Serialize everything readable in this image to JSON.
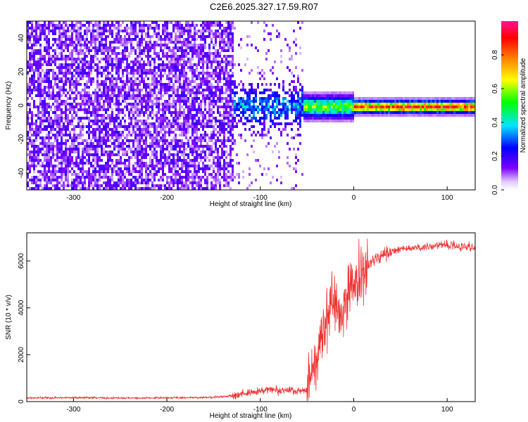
{
  "title": "C2E6.2025.327.17.59.R07",
  "chart_data": [
    {
      "type": "heatmap",
      "name": "spectrogram",
      "xlabel": "Height of straight line (km)",
      "ylabel": "Frequency (Hz)",
      "xlim": [
        -350,
        130
      ],
      "ylim": [
        -50,
        50
      ],
      "xticks": [
        -300,
        -200,
        -100,
        0,
        100
      ],
      "yticks": [
        -40,
        -20,
        0,
        20,
        40
      ],
      "colorbar": {
        "label": "Normalized spectral amplitude",
        "range": [
          0,
          1
        ],
        "ticks": [
          0.0,
          0.2,
          0.4,
          0.6,
          0.8
        ],
        "colors": [
          "#ffffff",
          "#7a00ff",
          "#0000ff",
          "#00e5ff",
          "#00ff00",
          "#ffff00",
          "#ff7f00",
          "#ff0000",
          "#ff1493"
        ]
      },
      "regions": [
        {
          "x_range": [
            -350,
            -130
          ],
          "description": "broadband noise",
          "amplitude": 0.15
        },
        {
          "x_range": [
            -130,
            -55
          ],
          "description": "sparse noise, signal emerging near 0 Hz",
          "amplitude": 0.3
        },
        {
          "x_range": [
            -55,
            0
          ],
          "description": "narrowband signal near 0 Hz",
          "amplitude": 0.6
        },
        {
          "x_range": [
            0,
            130
          ],
          "description": "strong narrowband carrier at 0 Hz",
          "amplitude": 0.95
        }
      ]
    },
    {
      "type": "line",
      "name": "snr",
      "xlabel": "Height of straight line (km)",
      "ylabel": "SNR (10 * v/v)",
      "xlim": [
        -350,
        130
      ],
      "ylim": [
        0,
        7200
      ],
      "xticks": [
        -300,
        -200,
        -100,
        0,
        100
      ],
      "yticks": [
        0,
        2000,
        4000,
        6000
      ],
      "color": "#ee3333",
      "series": [
        {
          "name": "SNR",
          "x": [
            -350,
            -300,
            -250,
            -200,
            -150,
            -130,
            -110,
            -100,
            -90,
            -80,
            -70,
            -60,
            -50,
            -45,
            -40,
            -35,
            -30,
            -25,
            -20,
            -15,
            -10,
            -5,
            0,
            5,
            10,
            15,
            20,
            30,
            40,
            50,
            60,
            80,
            100,
            130
          ],
          "values": [
            150,
            170,
            150,
            160,
            180,
            250,
            380,
            450,
            520,
            480,
            500,
            450,
            500,
            1100,
            1800,
            2600,
            3400,
            4200,
            4300,
            3900,
            4100,
            4700,
            5000,
            5200,
            5500,
            5800,
            6000,
            6200,
            6400,
            6500,
            6550,
            6600,
            6700,
            6550
          ]
        }
      ]
    }
  ]
}
